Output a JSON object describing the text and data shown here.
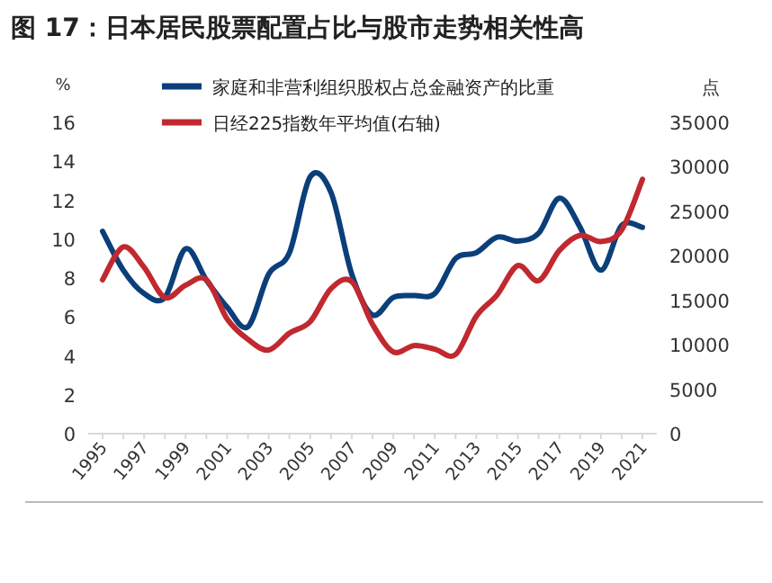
{
  "chart_data": {
    "type": "line",
    "title": "图 17：日本居民股票配置占比与股市走势相关性高",
    "ylabel": "%",
    "y2label": "点",
    "categories": [
      "1995",
      null,
      "1997",
      null,
      "1999",
      null,
      "2001",
      null,
      "2003",
      null,
      "2005",
      null,
      "2007",
      null,
      "2009",
      null,
      "2011",
      null,
      "2013",
      null,
      "2015",
      null,
      "2017",
      null,
      "2019",
      null,
      "2021"
    ],
    "series": [
      {
        "name": "家庭和非营利组织股权占总金融资产的比重",
        "color": "#0b3f7a",
        "values": [
          10.4,
          8.4,
          7.2,
          7.0,
          9.5,
          7.9,
          6.5,
          5.5,
          8.2,
          9.3,
          13.2,
          12.4,
          8.2,
          6.1,
          7.0,
          7.1,
          7.2,
          9.0,
          9.3,
          10.1,
          9.9,
          10.3,
          12.1,
          10.6,
          8.4,
          10.7,
          10.6
        ]
      },
      {
        "name": "日经225指数年平均值(右轴)",
        "color": "#c0292f",
        "axis": "y2",
        "values": [
          17300,
          21000,
          18700,
          15300,
          16700,
          17300,
          12900,
          10600,
          9400,
          11300,
          12600,
          16300,
          17100,
          12300,
          9200,
          9900,
          9500,
          8900,
          13200,
          15600,
          18900,
          17200,
          20600,
          22300,
          21600,
          22900,
          28600
        ]
      }
    ],
    "ylim": [
      0,
      16
    ],
    "yticks": [
      0,
      2,
      4,
      6,
      8,
      10,
      12,
      14,
      16
    ],
    "y2lim": [
      0,
      35000
    ],
    "y2ticks": [
      0,
      5000,
      10000,
      15000,
      20000,
      25000,
      30000,
      35000
    ],
    "legend": "top",
    "grid": false,
    "marker": "none",
    "line_style": "solid"
  }
}
